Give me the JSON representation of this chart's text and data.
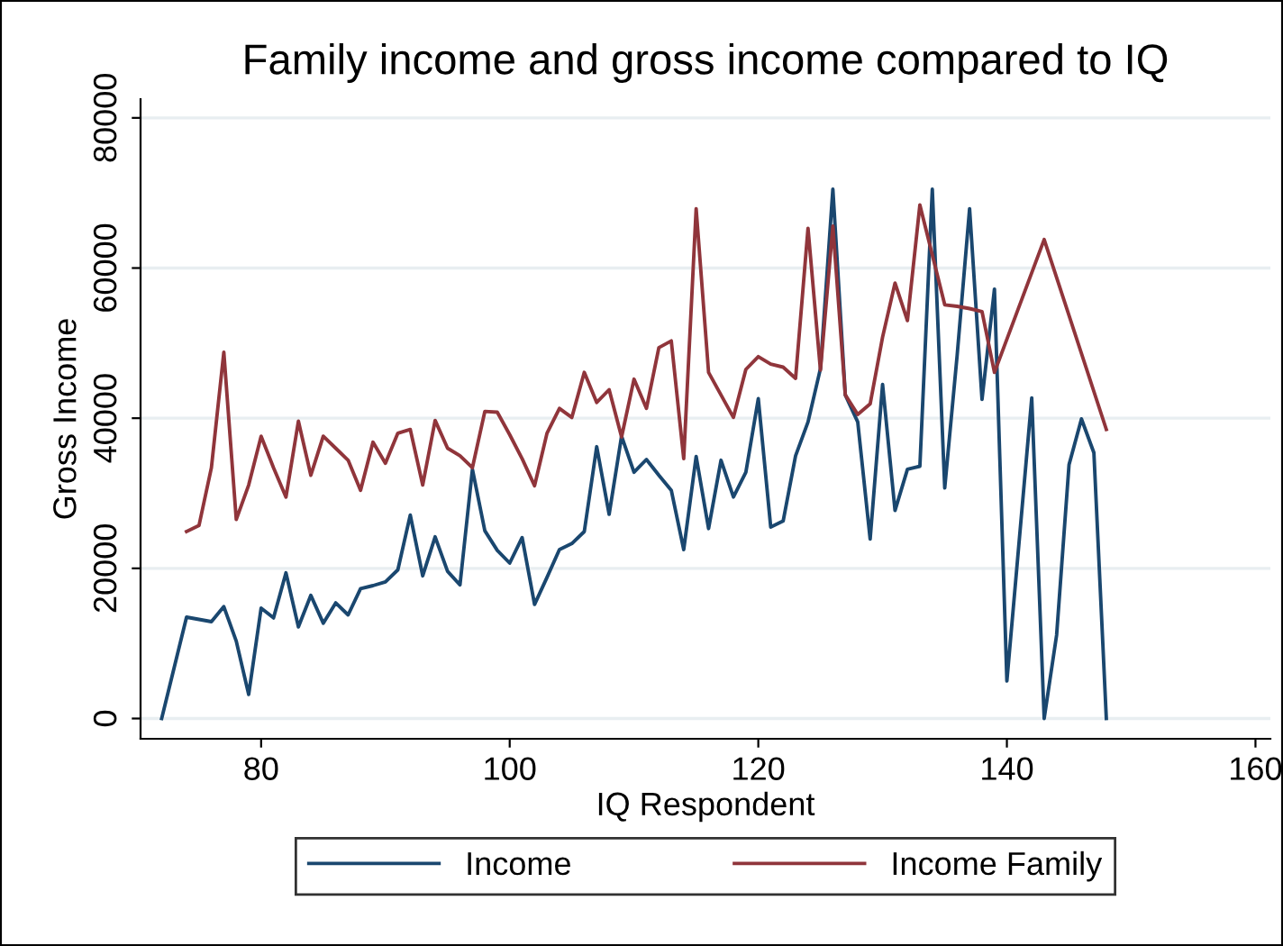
{
  "chart_data": {
    "type": "line",
    "title": "Family income and gross income compared to IQ",
    "xlabel": "IQ Respondent",
    "ylabel": "Gross Income",
    "xlim": [
      70.3,
      161.2
    ],
    "xticks": [
      80,
      100,
      120,
      140,
      160
    ],
    "ylim": [
      -2700,
      82500
    ],
    "yticks": [
      0,
      20000,
      40000,
      60000,
      80000
    ],
    "grid": "y",
    "legend": "bottom",
    "line_style": "solid",
    "marker": "none",
    "series": [
      {
        "name": "Income",
        "color": "#1a476f",
        "x": [
          72,
          74,
          76,
          77,
          78,
          79,
          80,
          81,
          82,
          83,
          84,
          85,
          86,
          87,
          88,
          89,
          90,
          91,
          92,
          93,
          94,
          95,
          96,
          97,
          98,
          99,
          100,
          101,
          102,
          103,
          104,
          105,
          106,
          107,
          108,
          109,
          110,
          111,
          112,
          113,
          114,
          115,
          116,
          117,
          118,
          119,
          120,
          121,
          122,
          123,
          124,
          125,
          126,
          127,
          128,
          129,
          130,
          131,
          132,
          133,
          134,
          135,
          136,
          137,
          138,
          139,
          140,
          142,
          143,
          144,
          145,
          146,
          147,
          148
        ],
        "values": [
          0,
          13500,
          12900,
          14900,
          10300,
          3200,
          14700,
          13400,
          19400,
          12200,
          16400,
          12700,
          15400,
          13800,
          17300,
          17700,
          18200,
          19800,
          27100,
          19000,
          24200,
          19600,
          17800,
          33200,
          25000,
          22400,
          20700,
          24100,
          15200,
          18800,
          22500,
          23300,
          24900,
          36200,
          27200,
          37600,
          32800,
          34500,
          32400,
          30400,
          22500,
          34900,
          25300,
          34400,
          29500,
          32800,
          42600,
          25500,
          26300,
          35000,
          39500,
          46600,
          70500,
          43100,
          39500,
          23900,
          44500,
          27700,
          33200,
          33600,
          70500,
          30700,
          48400,
          67900,
          42500,
          57200,
          5000,
          42700,
          0,
          11100,
          33800,
          39900,
          35400,
          0
        ]
      },
      {
        "name": "Income Family",
        "color": "#90353b",
        "x": [
          74,
          75,
          76,
          77,
          78,
          79,
          80,
          81,
          82,
          83,
          84,
          85,
          86,
          87,
          88,
          89,
          90,
          91,
          92,
          93,
          94,
          95,
          96,
          97,
          98,
          99,
          100,
          101,
          102,
          103,
          104,
          105,
          106,
          107,
          108,
          109,
          110,
          111,
          112,
          113,
          114,
          115,
          116,
          117,
          118,
          119,
          120,
          121,
          122,
          123,
          124,
          125,
          126,
          127,
          128,
          129,
          130,
          131,
          132,
          133,
          135,
          136,
          137,
          138,
          139,
          143,
          148
        ],
        "values": [
          24900,
          25700,
          33400,
          48800,
          26500,
          31100,
          37600,
          33400,
          29500,
          39600,
          32400,
          37600,
          36000,
          34400,
          30400,
          36800,
          34000,
          38000,
          38500,
          31100,
          39700,
          36000,
          35000,
          33400,
          40900,
          40800,
          37800,
          34600,
          31000,
          38000,
          41300,
          40100,
          46100,
          42100,
          43800,
          37500,
          45200,
          41300,
          49400,
          50300,
          34600,
          67900,
          46100,
          43100,
          40100,
          46500,
          48200,
          47200,
          46800,
          45300,
          65300,
          46400,
          65600,
          43100,
          40500,
          41900,
          50800,
          58000,
          53000,
          68400,
          55100,
          54900,
          54600,
          54200,
          46100,
          63800,
          38500
        ]
      }
    ]
  }
}
